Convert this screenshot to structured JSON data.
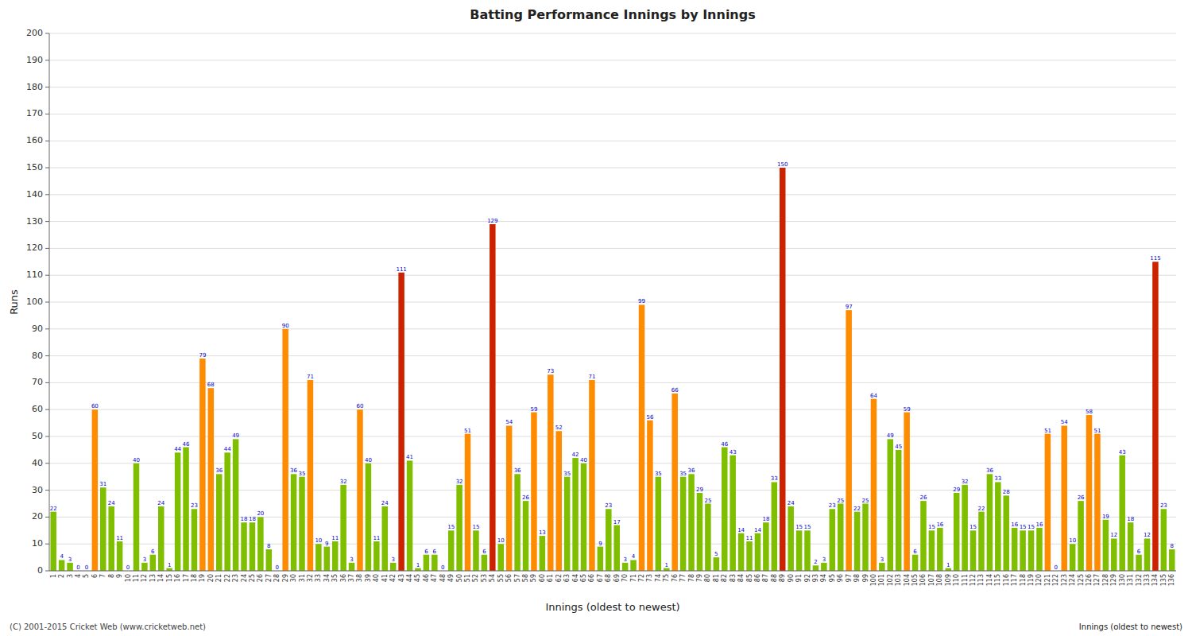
{
  "chart_data": {
    "type": "bar",
    "title": "Batting Performance Innings by Innings",
    "xlabel": "Innings (oldest to newest)",
    "ylabel": "Runs",
    "categories": [
      "1",
      "2",
      "3",
      "4",
      "5",
      "6",
      "7",
      "8",
      "9",
      "10",
      "11",
      "12",
      "13",
      "14",
      "15",
      "16",
      "17",
      "18",
      "19",
      "20",
      "21",
      "22",
      "23",
      "24",
      "25",
      "26",
      "27",
      "28",
      "29",
      "30",
      "31",
      "32",
      "33",
      "34",
      "35",
      "36",
      "37",
      "38",
      "39",
      "40",
      "41",
      "42",
      "43",
      "44",
      "45",
      "46",
      "47",
      "48",
      "49",
      "50",
      "51",
      "52",
      "53",
      "54",
      "55",
      "56",
      "57",
      "58",
      "59",
      "60",
      "61",
      "62",
      "63",
      "64",
      "65",
      "66",
      "67",
      "68",
      "69",
      "70",
      "71",
      "72",
      "73",
      "74",
      "75",
      "76",
      "77",
      "78",
      "79",
      "80",
      "81",
      "82",
      "83",
      "84",
      "85",
      "86",
      "87",
      "88",
      "89",
      "90",
      "91",
      "92",
      "93",
      "94",
      "95",
      "96",
      "97",
      "98",
      "99",
      "100",
      "101",
      "102",
      "103",
      "104",
      "105",
      "106",
      "107",
      "108",
      "109",
      "110",
      "111",
      "112",
      "113",
      "114",
      "115",
      "116",
      "117",
      "118",
      "119",
      "120",
      "121",
      "122",
      "123",
      "124",
      "125",
      "126",
      "127",
      "128",
      "129",
      "130",
      "131",
      "132",
      "133",
      "134",
      "135",
      "136"
    ],
    "values": [
      22,
      4,
      3,
      0,
      0,
      60,
      31,
      24,
      11,
      0,
      40,
      3,
      6,
      24,
      1,
      44,
      46,
      23,
      79,
      68,
      36,
      44,
      49,
      18,
      18,
      20,
      8,
      0,
      90,
      36,
      35,
      71,
      10,
      9,
      11,
      32,
      3,
      60,
      40,
      11,
      24,
      3,
      111,
      41,
      1,
      6,
      6,
      0,
      15,
      32,
      51,
      15,
      6,
      129,
      10,
      54,
      36,
      26,
      59,
      13,
      73,
      52,
      35,
      42,
      40,
      71,
      9,
      23,
      17,
      3,
      4,
      99,
      56,
      35,
      1,
      66,
      35,
      36,
      29,
      25,
      5,
      46,
      43,
      14,
      11,
      14,
      18,
      33,
      150,
      24,
      15,
      15,
      2,
      3,
      23,
      25,
      97,
      22,
      25,
      64,
      3,
      49,
      45,
      59,
      6,
      26,
      15,
      16,
      1,
      29,
      32,
      15,
      22,
      36,
      33,
      28,
      16,
      15,
      15,
      16,
      51,
      0,
      54,
      10,
      26,
      58,
      51,
      19,
      12,
      43,
      18,
      6,
      12,
      115,
      23,
      8
    ],
    "colors": [
      "#7FBF00",
      "#7FBF00",
      "#7FBF00",
      "#7FBF00",
      "#7FBF00",
      "#FF8C00",
      "#7FBF00",
      "#7FBF00",
      "#7FBF00",
      "#7FBF00",
      "#7FBF00",
      "#7FBF00",
      "#7FBF00",
      "#7FBF00",
      "#7FBF00",
      "#7FBF00",
      "#7FBF00",
      "#7FBF00",
      "#FF8C00",
      "#FF8C00",
      "#7FBF00",
      "#7FBF00",
      "#7FBF00",
      "#7FBF00",
      "#7FBF00",
      "#7FBF00",
      "#7FBF00",
      "#7FBF00",
      "#FF8C00",
      "#7FBF00",
      "#7FBF00",
      "#FF8C00",
      "#7FBF00",
      "#7FBF00",
      "#7FBF00",
      "#7FBF00",
      "#7FBF00",
      "#FF8C00",
      "#7FBF00",
      "#7FBF00",
      "#7FBF00",
      "#7FBF00",
      "#CC2200",
      "#7FBF00",
      "#7FBF00",
      "#7FBF00",
      "#7FBF00",
      "#7FBF00",
      "#7FBF00",
      "#7FBF00",
      "#FF8C00",
      "#7FBF00",
      "#7FBF00",
      "#CC2200",
      "#7FBF00",
      "#FF8C00",
      "#7FBF00",
      "#7FBF00",
      "#FF8C00",
      "#7FBF00",
      "#FF8C00",
      "#FF8C00",
      "#7FBF00",
      "#7FBF00",
      "#7FBF00",
      "#FF8C00",
      "#7FBF00",
      "#7FBF00",
      "#7FBF00",
      "#7FBF00",
      "#7FBF00",
      "#FF8C00",
      "#FF8C00",
      "#7FBF00",
      "#7FBF00",
      "#FF8C00",
      "#7FBF00",
      "#7FBF00",
      "#7FBF00",
      "#7FBF00",
      "#7FBF00",
      "#7FBF00",
      "#7FBF00",
      "#7FBF00",
      "#7FBF00",
      "#7FBF00",
      "#7FBF00",
      "#7FBF00",
      "#CC2200",
      "#7FBF00",
      "#7FBF00",
      "#7FBF00",
      "#7FBF00",
      "#7FBF00",
      "#7FBF00",
      "#7FBF00",
      "#FF8C00",
      "#7FBF00",
      "#7FBF00",
      "#FF8C00",
      "#7FBF00",
      "#7FBF00",
      "#7FBF00",
      "#FF8C00",
      "#7FBF00",
      "#7FBF00",
      "#7FBF00",
      "#7FBF00",
      "#7FBF00",
      "#7FBF00",
      "#7FBF00",
      "#7FBF00",
      "#7FBF00",
      "#7FBF00",
      "#7FBF00",
      "#7FBF00",
      "#7FBF00",
      "#7FBF00",
      "#7FBF00",
      "#7FBF00",
      "#FF8C00",
      "#7FBF00",
      "#FF8C00",
      "#7FBF00",
      "#7FBF00",
      "#FF8C00",
      "#FF8C00",
      "#7FBF00",
      "#7FBF00",
      "#7FBF00",
      "#7FBF00",
      "#7FBF00",
      "#7FBF00",
      "#CC2200",
      "#7FBF00",
      "#7FBF00"
    ],
    "ylim": [
      0,
      200
    ],
    "yticks": [
      0,
      10,
      20,
      30,
      40,
      50,
      60,
      70,
      80,
      90,
      100,
      110,
      120,
      130,
      140,
      150,
      160,
      170,
      180,
      190,
      200
    ],
    "grid": true,
    "data_labels": true,
    "annotations": [
      "(C) 2001-2015 Cricket Web (www.cricketweb.net)",
      "Innings (oldest to newest)"
    ]
  }
}
